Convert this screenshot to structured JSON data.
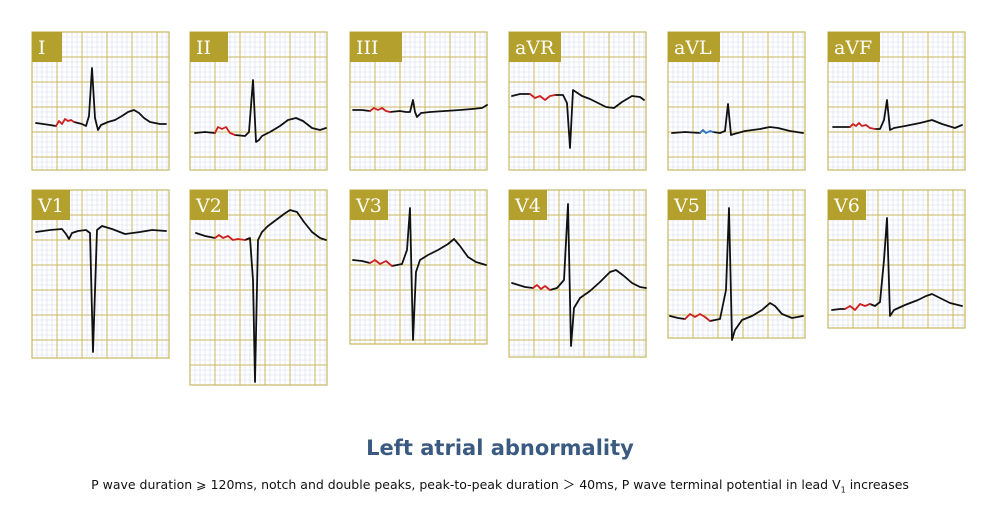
{
  "colors": {
    "grid_fine": "#d7dcef",
    "grid_major": "#c9b860",
    "panel_border": "#c9b860",
    "label_bg": "#b4a02c",
    "trace": "#111111",
    "p_wave_red": "#cc2020",
    "p_wave_blue": "#2a6fc0"
  },
  "leads": [
    {
      "name": "I",
      "p_color": "red"
    },
    {
      "name": "II",
      "p_color": "red"
    },
    {
      "name": "III",
      "p_color": "red"
    },
    {
      "name": "aVR",
      "p_color": "red"
    },
    {
      "name": "aVL",
      "p_color": "blue"
    },
    {
      "name": "aVF",
      "p_color": "red"
    },
    {
      "name": "V1",
      "p_color": "none"
    },
    {
      "name": "V2",
      "p_color": "red"
    },
    {
      "name": "V3",
      "p_color": "red"
    },
    {
      "name": "V4",
      "p_color": "red"
    },
    {
      "name": "V5",
      "p_color": "red"
    },
    {
      "name": "V6",
      "p_color": "red"
    }
  ],
  "title": "Left atrial abnormality",
  "caption": {
    "part1": "P wave duration ⩾ 120ms, notch and double peaks, peak-to-peak duration ＞ 40ms, P wave terminal potential in lead V",
    "sub": "1",
    "part2": " increases"
  },
  "watermark_id": "#596301220"
}
